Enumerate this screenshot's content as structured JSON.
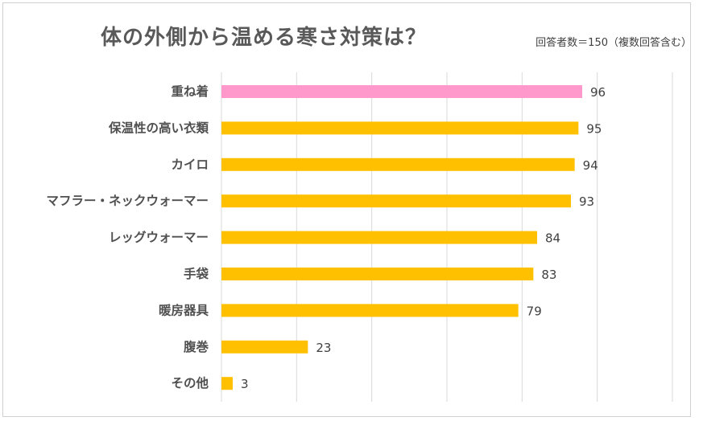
{
  "chart_data": {
    "type": "bar",
    "orientation": "horizontal",
    "title": "体の外側から温める寒さ対策は？",
    "subtitle": "回答者数＝150（複数回答含む）",
    "categories": [
      "重ね着",
      "保温性の高い衣類",
      "カイロ",
      "マフラー・ネックウォーマー",
      "レッグウォーマー",
      "手袋",
      "暖房器具",
      "腹巻",
      "その他"
    ],
    "values": [
      96,
      95,
      94,
      93,
      84,
      83,
      79,
      23,
      3
    ],
    "colors": [
      "#ff99cc",
      "#ffc000",
      "#ffc000",
      "#ffc000",
      "#ffc000",
      "#ffc000",
      "#ffc000",
      "#ffc000",
      "#ffc000"
    ],
    "xlim": [
      0,
      120
    ],
    "grid_step": 20,
    "grid": true,
    "xlabel": "",
    "ylabel": ""
  },
  "colors": {
    "highlight": "#ff99cc",
    "bar": "#ffc000",
    "grid": "#d9d9d9"
  }
}
